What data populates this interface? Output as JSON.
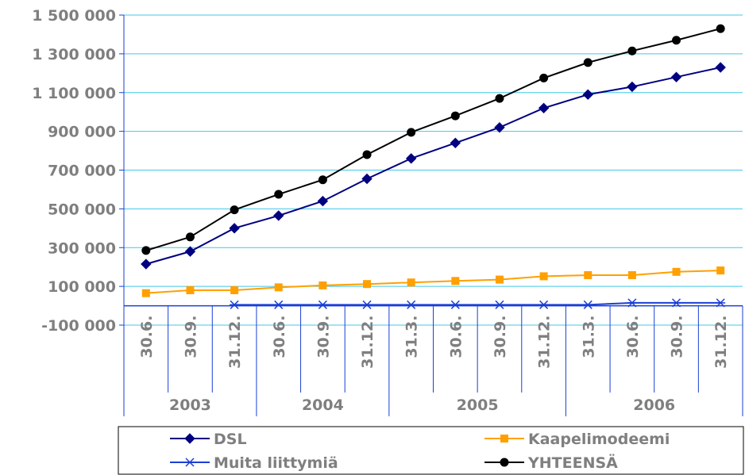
{
  "chart_data": {
    "type": "line",
    "categories": [
      "30.6.",
      "30.9.",
      "31.12.",
      "30.6.",
      "30.9.",
      "31.12.",
      "31.3.",
      "30.6.",
      "30.9.",
      "31.12.",
      "31.3.",
      "30.6.",
      "30.9.",
      "31.12."
    ],
    "year_groups": [
      {
        "label": "2003",
        "span": 3
      },
      {
        "label": "2004",
        "span": 3
      },
      {
        "label": "2005",
        "span": 4
      },
      {
        "label": "2006",
        "span": 4
      }
    ],
    "y_ticks": [
      "1 500 000",
      "1 300 000",
      "1 100 000",
      "900 000",
      "700 000",
      "500 000",
      "300 000",
      "100 000",
      "-100 000"
    ],
    "y_tick_values": [
      1500000,
      1300000,
      1100000,
      900000,
      700000,
      500000,
      300000,
      100000,
      -100000
    ],
    "ylim": [
      -100000,
      1500000
    ],
    "grid": true,
    "legend_position": "bottom",
    "series": [
      {
        "name": "DSL",
        "color": "#000080",
        "marker": "diamond",
        "values": [
          215000,
          280000,
          400000,
          465000,
          540000,
          655000,
          760000,
          840000,
          920000,
          1020000,
          1090000,
          1130000,
          1180000,
          1230000
        ]
      },
      {
        "name": "Kaapelimodeemi",
        "color": "#ffa000",
        "marker": "square",
        "values": [
          65000,
          80000,
          80000,
          95000,
          105000,
          112000,
          120000,
          128000,
          135000,
          152000,
          158000,
          158000,
          175000,
          182000
        ]
      },
      {
        "name": "Muita liittymiä",
        "color": "#1a3fd6",
        "marker": "star",
        "values": [
          null,
          null,
          5000,
          5000,
          5000,
          5000,
          5000,
          5000,
          5000,
          5000,
          5000,
          15000,
          15000,
          15000
        ]
      },
      {
        "name": "YHTEENSÄ",
        "color": "#000000",
        "marker": "circle",
        "values": [
          285000,
          355000,
          495000,
          575000,
          650000,
          780000,
          895000,
          980000,
          1070000,
          1175000,
          1255000,
          1315000,
          1370000,
          1430000
        ]
      }
    ]
  }
}
